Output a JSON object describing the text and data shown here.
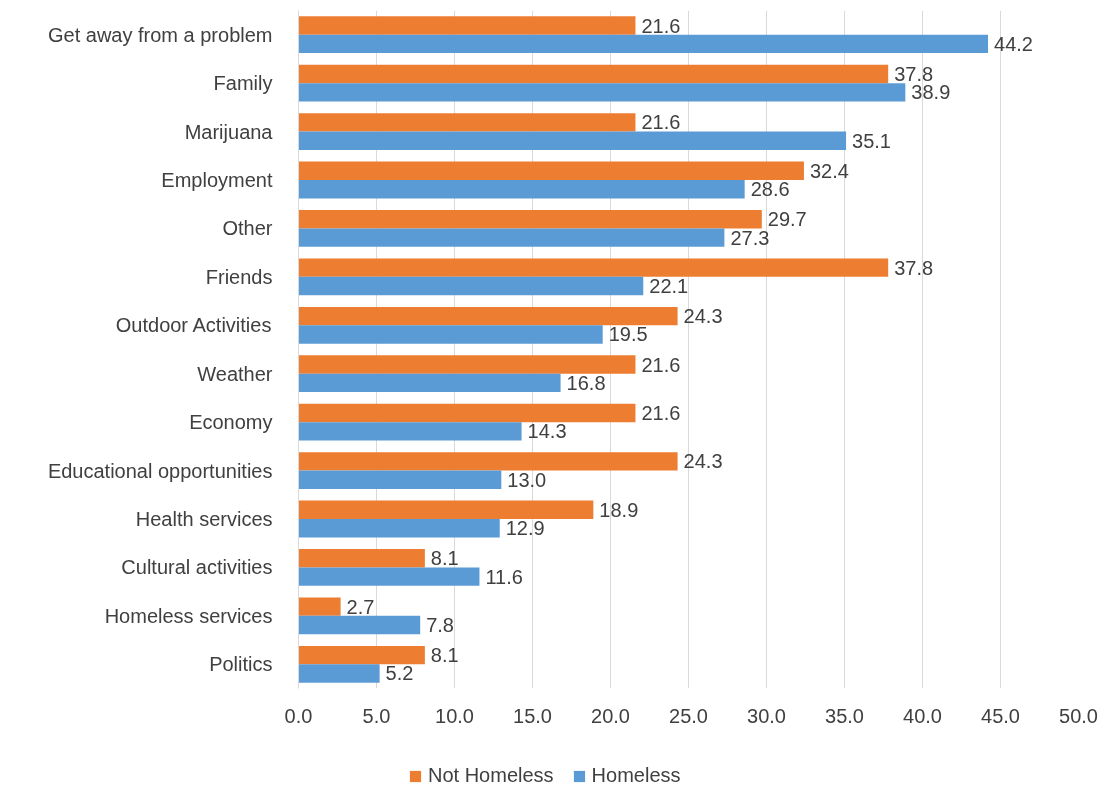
{
  "chart_data": {
    "type": "bar",
    "orientation": "horizontal",
    "categories": [
      "Get away from a problem",
      "Family",
      "Marijuana",
      "Employment",
      "Other",
      "Friends",
      "Outdoor Activities",
      "Weather",
      "Economy",
      "Educational opportunities",
      "Health services",
      "Cultural activities",
      "Homeless services",
      "Politics"
    ],
    "series": [
      {
        "name": "Not Homeless",
        "color": "#ed7d31",
        "values": [
          21.6,
          37.8,
          21.6,
          32.4,
          29.7,
          37.8,
          24.3,
          21.6,
          21.6,
          24.3,
          18.9,
          8.1,
          2.7,
          8.1
        ],
        "value_labels": [
          "21.6",
          "37.8",
          "21.6",
          "32.4",
          "29.7",
          "37.8",
          "24.3",
          "21.6",
          "21.6",
          "24.3",
          "18.9",
          "8.1",
          "2.7",
          "8.1"
        ]
      },
      {
        "name": "Homeless",
        "color": "#5b9bd5",
        "values": [
          44.2,
          38.9,
          35.1,
          28.6,
          27.3,
          22.1,
          19.5,
          16.8,
          14.3,
          13.0,
          12.9,
          11.6,
          7.8,
          5.2
        ],
        "value_labels": [
          "44.2",
          "38.9",
          "35.1",
          "28.6",
          "27.3",
          "22.1",
          "19.5",
          "16.8",
          "14.3",
          "13.0",
          "12.9",
          "11.6",
          "7.8",
          "5.2"
        ]
      }
    ],
    "xlim": [
      0,
      50
    ],
    "xticks": [
      {
        "value": 0,
        "label": "0.0"
      },
      {
        "value": 5,
        "label": "5.0"
      },
      {
        "value": 10,
        "label": "10.0"
      },
      {
        "value": 15,
        "label": "15.0"
      },
      {
        "value": 20,
        "label": "20.0"
      },
      {
        "value": 25,
        "label": "25.0"
      },
      {
        "value": 30,
        "label": "30.0"
      },
      {
        "value": 35,
        "label": "35.0"
      },
      {
        "value": 40,
        "label": "40.0"
      },
      {
        "value": 45,
        "label": "45.0"
      },
      {
        "value": 50,
        "label": "50.0"
      }
    ],
    "grid": "x",
    "legend": "bottom"
  }
}
